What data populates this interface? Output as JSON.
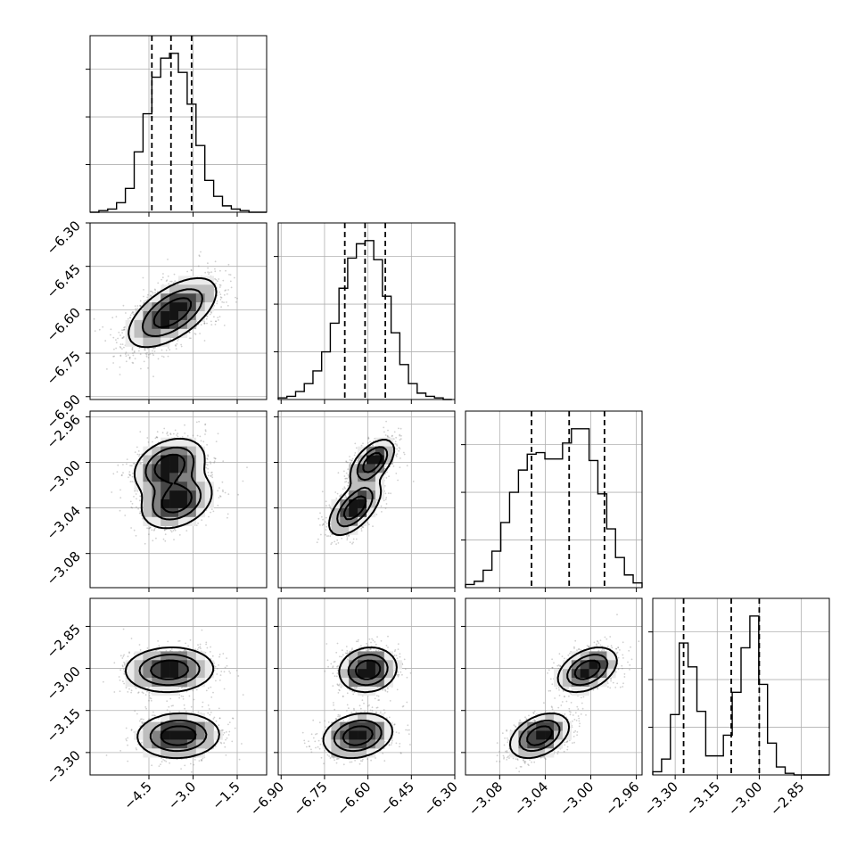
{
  "chart_data": {
    "type": "scatter",
    "title": "",
    "grid": true,
    "parameters": [
      {
        "xlim": [
          -6.5,
          -0.5
        ],
        "ticks": [
          -4.5,
          -3.0,
          -1.5
        ],
        "tick_labels": [
          "−4.5",
          "−3.0",
          "−1.5"
        ]
      },
      {
        "xlim": [
          -6.91,
          -6.3
        ],
        "ticks": [
          -6.9,
          -6.75,
          -6.6,
          -6.45,
          -6.3
        ],
        "tick_labels": [
          "−6.90",
          "−6.75",
          "−6.60",
          "−6.45",
          "−6.30"
        ]
      },
      {
        "xlim": [
          -3.11,
          -2.955
        ],
        "ticks": [
          -3.08,
          -3.04,
          -3.0,
          -2.96
        ],
        "tick_labels": [
          "−3.08",
          "−3.04",
          "−3.00",
          "−2.96"
        ]
      },
      {
        "xlim": [
          -3.38,
          -2.75
        ],
        "ticks": [
          -3.3,
          -3.15,
          -3.0,
          -2.85
        ],
        "tick_labels": [
          "−3.30",
          "−3.15",
          "−3.00",
          "−2.85"
        ]
      }
    ],
    "diagonal_histograms": [
      {
        "quantiles": [
          -4.4,
          -3.75,
          -3.05
        ],
        "bin_edges": [
          -6.5,
          -6.2,
          -5.9,
          -5.6,
          -5.3,
          -5.0,
          -4.7,
          -4.4,
          -4.1,
          -3.8,
          -3.5,
          -3.2,
          -2.9,
          -2.6,
          -2.3,
          -2.0,
          -1.7,
          -1.4,
          -1.1,
          -0.8,
          -0.5
        ],
        "counts": [
          0.0,
          0.01,
          0.02,
          0.06,
          0.15,
          0.38,
          0.62,
          0.85,
          0.97,
          1.0,
          0.88,
          0.68,
          0.42,
          0.2,
          0.1,
          0.04,
          0.02,
          0.01,
          0.0,
          0.0
        ]
      },
      {
        "quantiles": [
          -6.68,
          -6.61,
          -6.54
        ],
        "bin_edges": [
          -6.91,
          -6.88,
          -6.85,
          -6.82,
          -6.79,
          -6.76,
          -6.73,
          -6.7,
          -6.67,
          -6.64,
          -6.61,
          -6.58,
          -6.55,
          -6.52,
          -6.49,
          -6.46,
          -6.43,
          -6.4,
          -6.37,
          -6.34,
          -6.31
        ],
        "counts": [
          0.01,
          0.02,
          0.05,
          0.1,
          0.18,
          0.3,
          0.48,
          0.7,
          0.89,
          0.98,
          1.0,
          0.88,
          0.65,
          0.42,
          0.22,
          0.1,
          0.04,
          0.02,
          0.01,
          0.0
        ]
      },
      {
        "quantiles": [
          -3.052,
          -3.019,
          -2.988
        ],
        "bin_edges": [
          -3.11,
          -3.1023,
          -3.0945,
          -3.0868,
          -3.079,
          -3.0713,
          -3.0635,
          -3.0558,
          -3.048,
          -3.0403,
          -3.0325,
          -3.0248,
          -3.017,
          -3.0093,
          -3.0015,
          -2.9938,
          -2.986,
          -2.9783,
          -2.9705,
          -2.9628,
          -2.955
        ],
        "counts": [
          0.02,
          0.04,
          0.11,
          0.23,
          0.41,
          0.6,
          0.74,
          0.84,
          0.85,
          0.81,
          0.81,
          0.91,
          1.0,
          1.0,
          0.8,
          0.59,
          0.37,
          0.19,
          0.08,
          0.03
        ]
      },
      {
        "quantiles": [
          -3.27,
          -3.1,
          -3.0
        ],
        "bin_edges": [
          -3.38,
          -3.3485,
          -3.317,
          -3.2855,
          -3.254,
          -3.2225,
          -3.191,
          -3.1595,
          -3.128,
          -3.0965,
          -3.065,
          -3.0335,
          -3.002,
          -2.9705,
          -2.939,
          -2.9075,
          -2.876,
          -2.8445,
          -2.813,
          -2.7815,
          -2.75
        ],
        "counts": [
          0.02,
          0.1,
          0.38,
          0.83,
          0.68,
          0.4,
          0.12,
          0.12,
          0.25,
          0.52,
          0.8,
          1.0,
          0.57,
          0.2,
          0.05,
          0.01,
          0.0,
          0.0,
          0.0,
          0.0
        ]
      }
    ],
    "pair_densities": [
      {
        "x_param": 0,
        "y_param": 1,
        "modes": [
          {
            "center": [
              -3.7,
              -6.61
            ],
            "sigma": [
              0.75,
              0.06
            ],
            "rho": 0.6,
            "weight": 1.0
          }
        ]
      },
      {
        "x_param": 0,
        "y_param": 2,
        "modes": [
          {
            "center": [
              -3.8,
              -3.003
            ],
            "sigma": [
              0.6,
              0.012
            ],
            "rho": 0.3,
            "weight": 0.5
          },
          {
            "center": [
              -3.55,
              -3.034
            ],
            "sigma": [
              0.6,
              0.012
            ],
            "rho": 0.3,
            "weight": 0.5
          }
        ]
      },
      {
        "x_param": 1,
        "y_param": 2,
        "modes": [
          {
            "center": [
              -6.585,
              -3.0
            ],
            "sigma": [
              0.038,
              0.01
            ],
            "rho": 0.55,
            "weight": 0.5
          },
          {
            "center": [
              -6.645,
              -3.04
            ],
            "sigma": [
              0.045,
              0.012
            ],
            "rho": 0.6,
            "weight": 0.5
          }
        ]
      },
      {
        "x_param": 0,
        "y_param": 3,
        "modes": [
          {
            "center": [
              -3.8,
              -3.005
            ],
            "sigma": [
              0.75,
              0.04
            ],
            "rho": 0.05,
            "weight": 0.5
          },
          {
            "center": [
              -3.5,
              -3.24
            ],
            "sigma": [
              0.7,
              0.04
            ],
            "rho": 0.05,
            "weight": 0.5
          }
        ]
      },
      {
        "x_param": 1,
        "y_param": 3,
        "modes": [
          {
            "center": [
              -6.6,
              -3.005
            ],
            "sigma": [
              0.05,
              0.04
            ],
            "rho": 0.1,
            "weight": 0.5
          },
          {
            "center": [
              -6.635,
              -3.24
            ],
            "sigma": [
              0.06,
              0.04
            ],
            "rho": 0.2,
            "weight": 0.5
          }
        ]
      },
      {
        "x_param": 2,
        "y_param": 3,
        "modes": [
          {
            "center": [
              -3.003,
              -3.005
            ],
            "sigma": [
              0.013,
              0.04
            ],
            "rho": 0.4,
            "weight": 0.5
          },
          {
            "center": [
              -3.045,
              -3.24
            ],
            "sigma": [
              0.013,
              0.04
            ],
            "rho": 0.4,
            "weight": 0.5
          }
        ]
      }
    ]
  }
}
